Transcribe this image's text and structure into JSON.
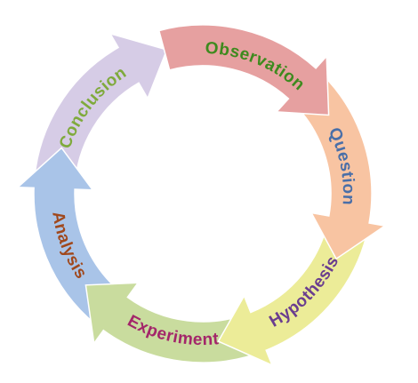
{
  "cycle": {
    "stages": [
      {
        "label": "Observation",
        "fill": "#e6a0a0",
        "text_color": "#3e8a1e"
      },
      {
        "label": "Question",
        "fill": "#f8c4a2",
        "text_color": "#4a6fa8"
      },
      {
        "label": "Hypothesis",
        "fill": "#ecec98",
        "text_color": "#6a3d8f"
      },
      {
        "label": "Experiment",
        "fill": "#c9dc9e",
        "text_color": "#a3266a"
      },
      {
        "label": "Analysis",
        "fill": "#a9c4e8",
        "text_color": "#a0481c"
      },
      {
        "label": "Conclusion",
        "fill": "#d6cce6",
        "text_color": "#7faa3c"
      }
    ]
  }
}
